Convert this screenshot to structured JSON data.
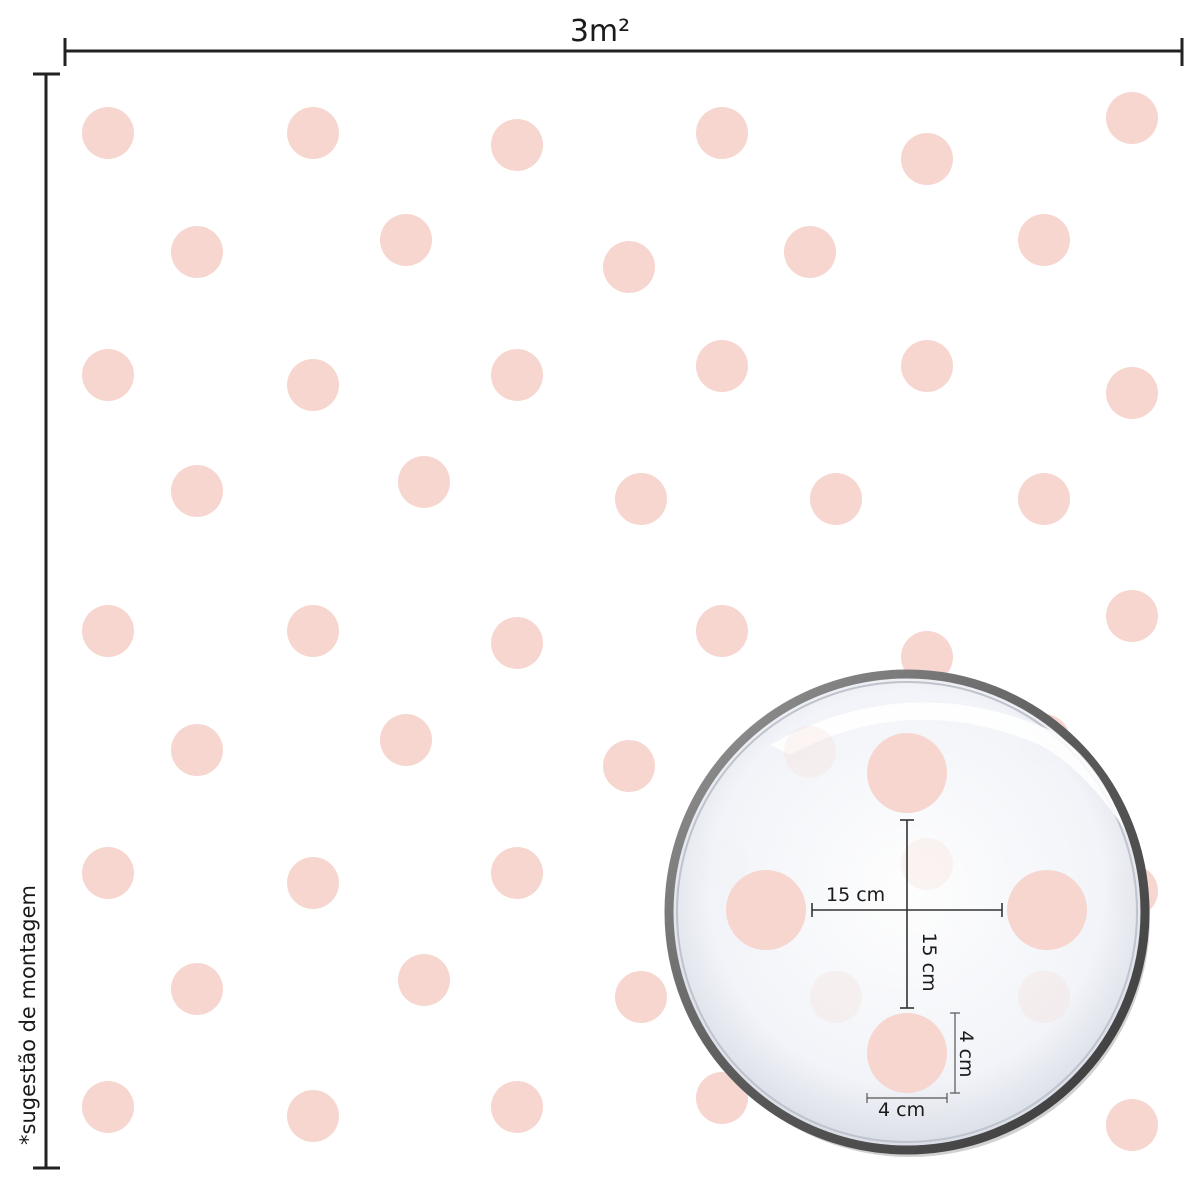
{
  "diagram": {
    "width_label": "3m²",
    "side_note": "*sugestão de montagem",
    "magnifier": {
      "spacing_horizontal": "15 cm",
      "spacing_vertical": "15 cm",
      "dot_width": "4 cm",
      "dot_height": "4 cm"
    }
  },
  "colors": {
    "dot": "#f6d6cf",
    "line": "#222222",
    "lens_rim": "#6f6f6f",
    "lens_fill": "#f4f6fb"
  }
}
